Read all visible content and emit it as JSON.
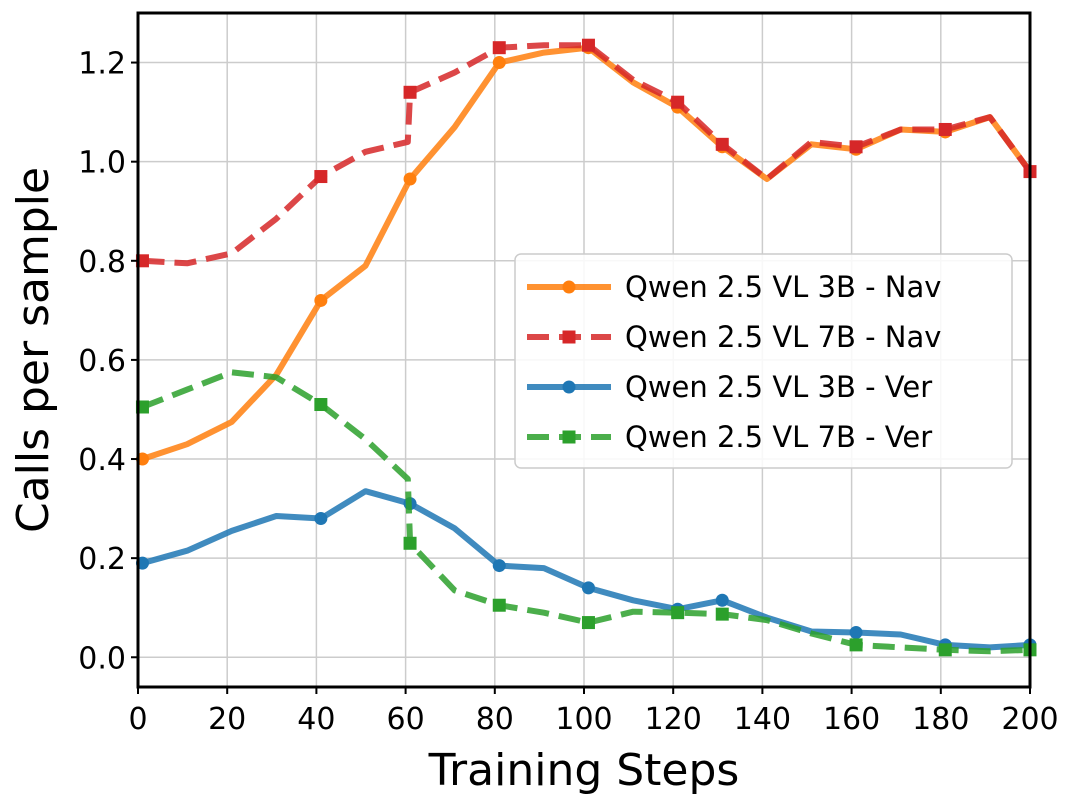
{
  "chart_data": {
    "type": "line",
    "title": "",
    "xlabel": "Training Steps",
    "ylabel": "Calls per sample",
    "xlim": [
      0,
      200
    ],
    "ylim": [
      -0.06,
      1.3
    ],
    "x_ticks": [
      0,
      20,
      40,
      60,
      80,
      100,
      120,
      140,
      160,
      180,
      200
    ],
    "y_ticks": [
      0.0,
      0.2,
      0.4,
      0.6,
      0.8,
      1.0,
      1.2
    ],
    "grid": true,
    "legend_position": "center-right",
    "series": [
      {
        "name": "Qwen 2.5 VL 3B - Nav",
        "color": "#ff7f0e",
        "style": "solid",
        "marker": "circle",
        "x": [
          1,
          11,
          21,
          31,
          41,
          51,
          61,
          71,
          81,
          91,
          101,
          111,
          121,
          131,
          141,
          151,
          161,
          171,
          181,
          191,
          200
        ],
        "y": [
          0.4,
          0.43,
          0.475,
          0.57,
          0.72,
          0.79,
          0.965,
          1.07,
          1.2,
          1.22,
          1.23,
          1.16,
          1.11,
          1.03,
          0.965,
          1.035,
          1.025,
          1.065,
          1.06,
          1.09,
          0.98
        ]
      },
      {
        "name": "Qwen 2.5 VL 7B - Nav",
        "color": "#d62728",
        "style": "dashed",
        "marker": "square",
        "x": [
          1,
          11,
          21,
          31,
          41,
          51,
          60.5,
          61,
          71,
          81,
          91,
          101,
          111,
          121,
          131,
          141,
          151,
          161,
          171,
          181,
          191,
          200
        ],
        "y": [
          0.8,
          0.795,
          0.815,
          0.885,
          0.97,
          1.02,
          1.04,
          1.14,
          1.18,
          1.23,
          1.235,
          1.235,
          1.165,
          1.12,
          1.035,
          0.965,
          1.04,
          1.03,
          1.065,
          1.065,
          1.09,
          0.98
        ]
      },
      {
        "name": "Qwen 2.5 VL 3B - Ver",
        "color": "#1f77b4",
        "style": "solid",
        "marker": "circle",
        "x": [
          1,
          11,
          21,
          31,
          41,
          51,
          61,
          71,
          81,
          91,
          101,
          111,
          121,
          131,
          141,
          151,
          161,
          171,
          181,
          191,
          200
        ],
        "y": [
          0.19,
          0.215,
          0.255,
          0.285,
          0.28,
          0.335,
          0.31,
          0.26,
          0.185,
          0.18,
          0.14,
          0.115,
          0.097,
          0.115,
          0.08,
          0.052,
          0.05,
          0.046,
          0.025,
          0.02,
          0.025
        ]
      },
      {
        "name": "Qwen 2.5 VL 7B - Ver",
        "color": "#2ca02c",
        "style": "dashed",
        "marker": "square",
        "x": [
          1,
          11,
          21,
          31,
          41,
          51,
          60.5,
          61,
          71,
          81,
          91,
          101,
          111,
          121,
          131,
          141,
          151,
          161,
          171,
          181,
          191,
          200
        ],
        "y": [
          0.505,
          0.54,
          0.575,
          0.565,
          0.51,
          0.44,
          0.36,
          0.23,
          0.135,
          0.105,
          0.09,
          0.07,
          0.092,
          0.09,
          0.087,
          0.075,
          0.048,
          0.025,
          0.02,
          0.015,
          0.012,
          0.015
        ]
      }
    ]
  }
}
